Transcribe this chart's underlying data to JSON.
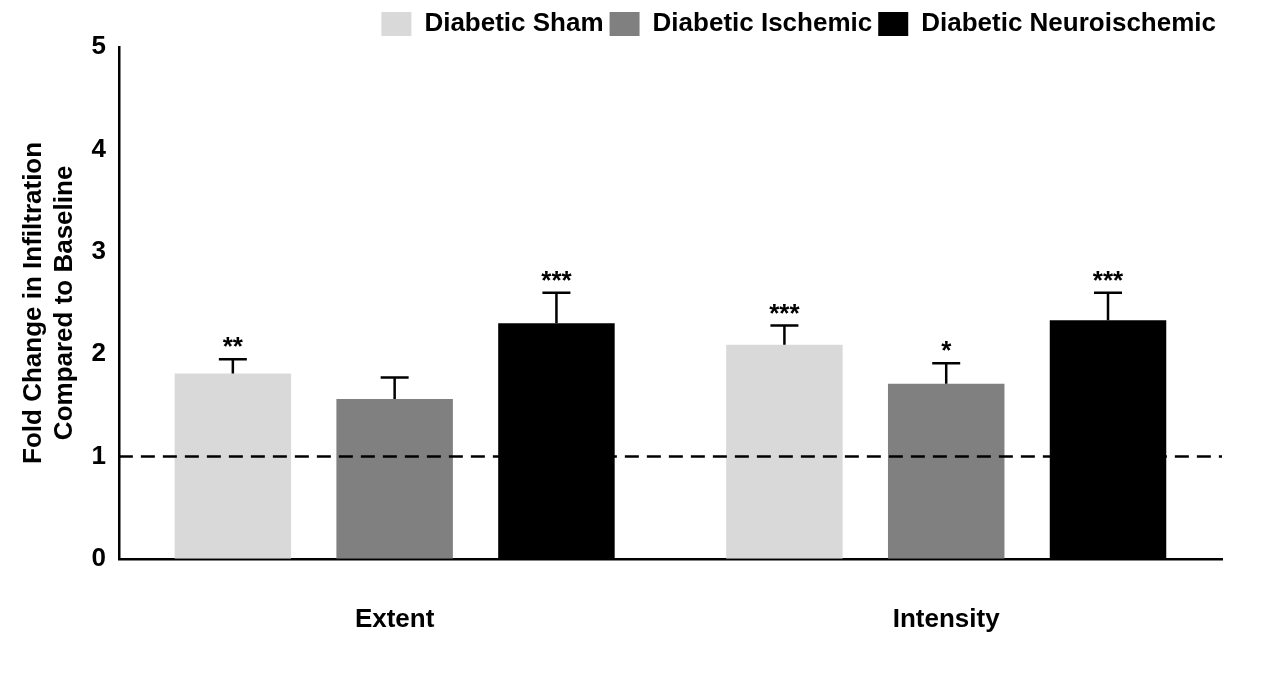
{
  "chart_data": {
    "type": "bar",
    "ylabel": "Fold Change in Infiltration\nCompared to Baseline",
    "categories": [
      "Extent",
      "Intensity"
    ],
    "series": [
      {
        "name": "Diabetic Sham",
        "color": "#d9d9d9",
        "values": [
          1.81,
          2.09
        ],
        "errors": [
          [
            1.81,
            1.95
          ],
          [
            2.09,
            2.28
          ]
        ],
        "value_labels": [
          "**",
          "***"
        ]
      },
      {
        "name": "Diabetic Ischemic",
        "color": "#808080",
        "values": [
          1.56,
          1.71
        ],
        "errors": [
          [
            1.56,
            1.77
          ],
          [
            1.71,
            1.91
          ]
        ],
        "value_labels": [
          null,
          "*"
        ]
      },
      {
        "name": "Diabetic Neuroischemic",
        "color": "#000000",
        "values": [
          2.3,
          2.33
        ],
        "errors": [
          [
            2.3,
            2.6
          ],
          [
            2.33,
            2.6
          ]
        ],
        "value_labels": [
          "***",
          "***"
        ]
      }
    ],
    "ylim": [
      0,
      5
    ],
    "yticks": [
      0,
      1,
      2,
      3,
      4,
      5
    ],
    "grid": false,
    "legend": "top right",
    "ref_lines": [
      {
        "axis": "y",
        "value": 1,
        "line_style": "dashed",
        "color": "#000000"
      }
    ]
  }
}
